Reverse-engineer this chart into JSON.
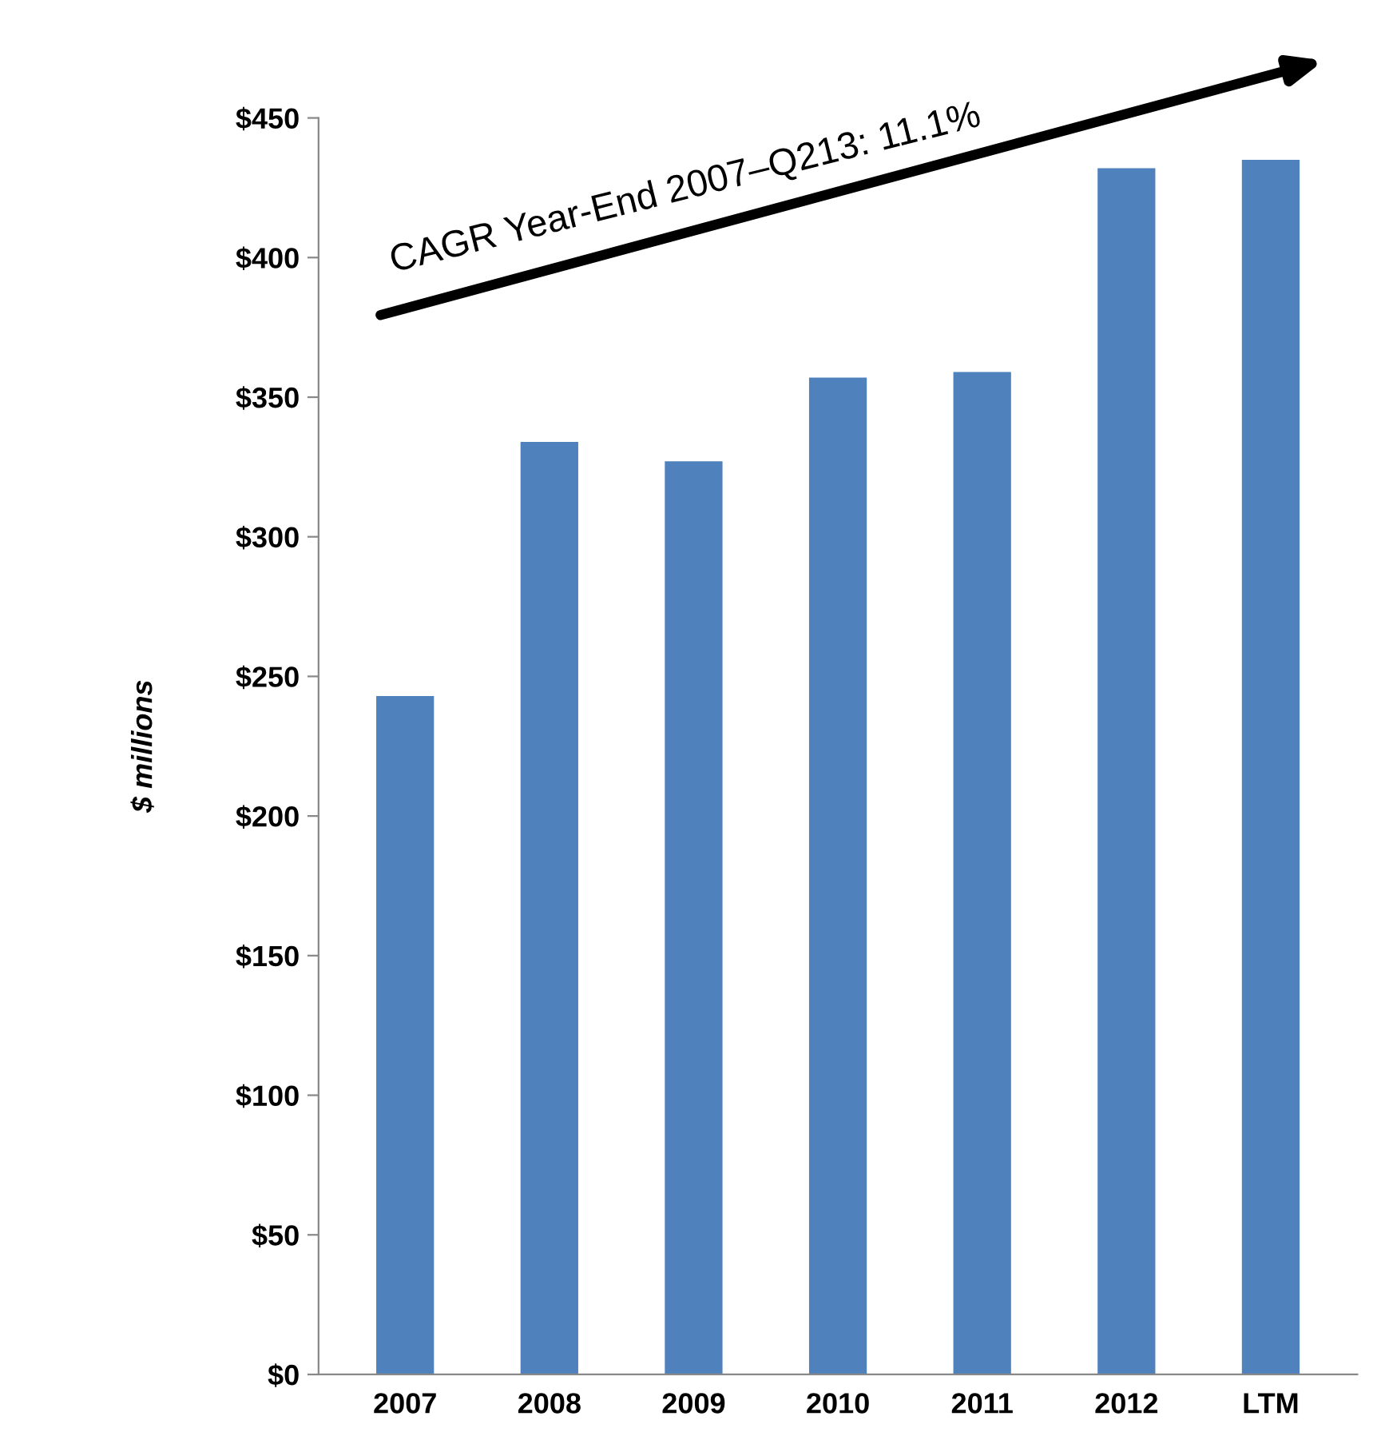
{
  "chart_data": {
    "type": "bar",
    "ylabel": "$ millions",
    "categories": [
      "2007",
      "2008",
      "2009",
      "2010",
      "2011",
      "2012",
      "LTM"
    ],
    "values": [
      243,
      334,
      327,
      357,
      359,
      432,
      435
    ],
    "color": "#4f81bd",
    "ylim": [
      0,
      450
    ],
    "yticks": [
      {
        "value": 0,
        "label": "$0"
      },
      {
        "value": 50,
        "label": "$50"
      },
      {
        "value": 100,
        "label": "$100"
      },
      {
        "value": 150,
        "label": "$150"
      },
      {
        "value": 200,
        "label": "$200"
      },
      {
        "value": 250,
        "label": "$250"
      },
      {
        "value": 300,
        "label": "$300"
      },
      {
        "value": 350,
        "label": "$350"
      },
      {
        "value": 400,
        "label": "$400"
      },
      {
        "value": 450,
        "label": "$450"
      }
    ],
    "annotations": [
      "CAGR Year-End 2007–Q213: 11.1%"
    ],
    "grid": false
  }
}
